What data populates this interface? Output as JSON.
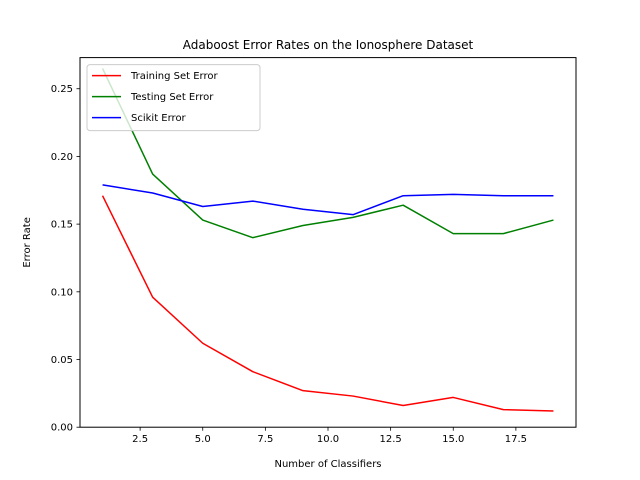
{
  "chart_data": {
    "type": "line",
    "title": "Adaboost Error Rates on the Ionosphere Dataset",
    "xlabel": "Number of Classifiers",
    "ylabel": "Error Rate",
    "xlim": [
      0.1,
      19.9
    ],
    "ylim": [
      0.0,
      0.273
    ],
    "x_ticks": [
      2.5,
      5.0,
      7.5,
      10.0,
      12.5,
      15.0,
      17.5
    ],
    "x_tick_labels": [
      "2.5",
      "5.0",
      "7.5",
      "10.0",
      "12.5",
      "15.0",
      "17.5"
    ],
    "y_ticks": [
      0.0,
      0.05,
      0.1,
      0.15,
      0.2,
      0.25
    ],
    "y_tick_labels": [
      "0.00",
      "0.05",
      "0.10",
      "0.15",
      "0.20",
      "0.25"
    ],
    "grid": false,
    "legend_position": "top-left",
    "x": [
      1,
      3,
      5,
      7,
      9,
      11,
      13,
      15,
      17,
      19
    ],
    "series": [
      {
        "name": "Training Set Error",
        "color": "#ff0000",
        "values": [
          0.171,
          0.096,
          0.062,
          0.041,
          0.027,
          0.023,
          0.016,
          0.022,
          0.013,
          0.012
        ]
      },
      {
        "name": "Testing Set Error",
        "color": "#008000",
        "values": [
          0.265,
          0.187,
          0.153,
          0.14,
          0.149,
          0.155,
          0.164,
          0.143,
          0.143,
          0.153
        ]
      },
      {
        "name": "Scikit Error",
        "color": "#0000ff",
        "values": [
          0.179,
          0.173,
          0.163,
          0.167,
          0.161,
          0.157,
          0.171,
          0.172,
          0.171,
          0.171
        ]
      }
    ]
  }
}
